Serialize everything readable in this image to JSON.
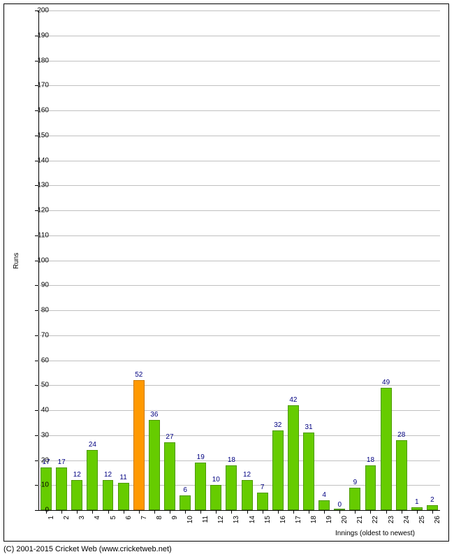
{
  "chart": {
    "type": "bar",
    "ylabel": "Runs",
    "xlabel": "Innings (oldest to newest)",
    "ylim": [
      0,
      200
    ],
    "ytick_step": 10,
    "grid_color": "#c0c0c0",
    "background_color": "#ffffff",
    "border_color": "#000000",
    "label_fontsize": 10,
    "bar_label_color": "#000080",
    "default_bar_color": "#66cc00",
    "default_bar_border": "#4d9900",
    "highlight_bar_color": "#ff9900",
    "highlight_bar_border": "#cc7a00",
    "bar_width_ratio": 0.72,
    "data": [
      {
        "x": 1,
        "value": 17
      },
      {
        "x": 2,
        "value": 17
      },
      {
        "x": 3,
        "value": 12
      },
      {
        "x": 4,
        "value": 24
      },
      {
        "x": 5,
        "value": 12
      },
      {
        "x": 6,
        "value": 11
      },
      {
        "x": 7,
        "value": 52,
        "highlight": true
      },
      {
        "x": 8,
        "value": 36
      },
      {
        "x": 9,
        "value": 27
      },
      {
        "x": 10,
        "value": 6
      },
      {
        "x": 11,
        "value": 19
      },
      {
        "x": 12,
        "value": 10
      },
      {
        "x": 13,
        "value": 18
      },
      {
        "x": 14,
        "value": 12
      },
      {
        "x": 15,
        "value": 7
      },
      {
        "x": 16,
        "value": 32
      },
      {
        "x": 17,
        "value": 42
      },
      {
        "x": 18,
        "value": 31
      },
      {
        "x": 19,
        "value": 4
      },
      {
        "x": 20,
        "value": 0
      },
      {
        "x": 21,
        "value": 9
      },
      {
        "x": 22,
        "value": 18
      },
      {
        "x": 23,
        "value": 49
      },
      {
        "x": 24,
        "value": 28
      },
      {
        "x": 25,
        "value": 1
      },
      {
        "x": 26,
        "value": 2
      }
    ]
  },
  "copyright": "(C) 2001-2015 Cricket Web (www.cricketweb.net)"
}
